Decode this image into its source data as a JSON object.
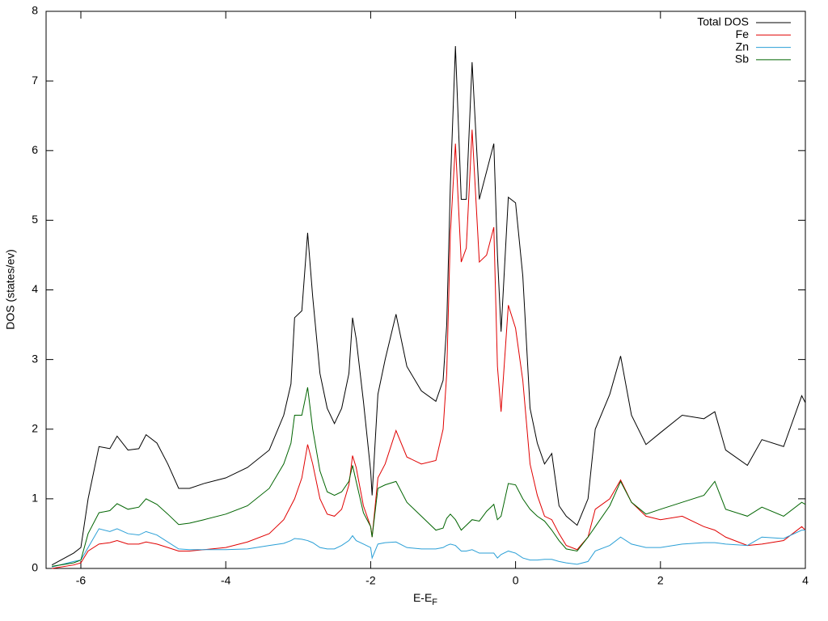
{
  "chart_data": {
    "type": "line",
    "xlabel": "E-E",
    "xlabel_subscript": "F",
    "ylabel": "DOS (states/ev)",
    "xlim": [
      -6.48,
      4
    ],
    "ylim": [
      0,
      8
    ],
    "xticks": [
      -6,
      -4,
      -2,
      0,
      2,
      4
    ],
    "yticks": [
      0,
      1,
      2,
      3,
      4,
      5,
      6,
      7,
      8
    ],
    "legend": "top-right",
    "x": [
      -6.4,
      -6.1,
      -6.0,
      -5.9,
      -5.75,
      -5.6,
      -5.5,
      -5.35,
      -5.2,
      -5.1,
      -4.95,
      -4.8,
      -4.65,
      -4.5,
      -4.3,
      -4.0,
      -3.7,
      -3.4,
      -3.2,
      -3.1,
      -3.05,
      -2.95,
      -2.87,
      -2.8,
      -2.7,
      -2.6,
      -2.5,
      -2.4,
      -2.3,
      -2.25,
      -2.2,
      -2.1,
      -2.0,
      -1.98,
      -1.9,
      -1.8,
      -1.65,
      -1.5,
      -1.3,
      -1.1,
      -1.0,
      -0.95,
      -0.9,
      -0.83,
      -0.75,
      -0.68,
      -0.6,
      -0.5,
      -0.4,
      -0.3,
      -0.25,
      -0.2,
      -0.1,
      0.0,
      0.1,
      0.2,
      0.3,
      0.4,
      0.5,
      0.6,
      0.7,
      0.85,
      1.0,
      1.1,
      1.3,
      1.45,
      1.6,
      1.8,
      2.0,
      2.3,
      2.6,
      2.75,
      2.9,
      3.2,
      3.4,
      3.7,
      3.95,
      4.0
    ],
    "series": [
      {
        "name": "Total DOS",
        "color": "#000000",
        "values": [
          0.05,
          0.22,
          0.3,
          1.0,
          1.75,
          1.72,
          1.9,
          1.7,
          1.72,
          1.92,
          1.8,
          1.5,
          1.15,
          1.15,
          1.22,
          1.3,
          1.45,
          1.7,
          2.2,
          2.65,
          3.6,
          3.7,
          4.82,
          3.9,
          2.8,
          2.3,
          2.08,
          2.3,
          2.8,
          3.6,
          3.3,
          2.4,
          1.4,
          1.05,
          2.5,
          3.0,
          3.65,
          2.9,
          2.55,
          2.4,
          2.7,
          3.5,
          5.5,
          7.5,
          5.3,
          5.3,
          7.27,
          5.3,
          5.7,
          6.1,
          4.5,
          3.4,
          5.33,
          5.25,
          4.2,
          2.3,
          1.8,
          1.5,
          1.65,
          0.9,
          0.75,
          0.62,
          1.0,
          2.0,
          2.5,
          3.05,
          2.2,
          1.78,
          1.95,
          2.2,
          2.15,
          2.25,
          1.7,
          1.48,
          1.85,
          1.75,
          2.48,
          2.38
        ]
      },
      {
        "name": "Fe",
        "color": "#e00000",
        "values": [
          0.0,
          0.05,
          0.08,
          0.25,
          0.35,
          0.37,
          0.4,
          0.35,
          0.35,
          0.38,
          0.35,
          0.3,
          0.25,
          0.25,
          0.27,
          0.3,
          0.38,
          0.5,
          0.7,
          0.9,
          1.0,
          1.3,
          1.78,
          1.5,
          1.0,
          0.78,
          0.75,
          0.85,
          1.2,
          1.62,
          1.45,
          0.9,
          0.6,
          0.45,
          1.3,
          1.5,
          1.98,
          1.6,
          1.5,
          1.55,
          2.0,
          2.8,
          4.8,
          6.1,
          4.4,
          4.6,
          6.3,
          4.4,
          4.5,
          4.9,
          2.9,
          2.25,
          3.78,
          3.45,
          2.7,
          1.5,
          1.05,
          0.75,
          0.7,
          0.5,
          0.33,
          0.27,
          0.45,
          0.85,
          1.0,
          1.27,
          0.95,
          0.75,
          0.7,
          0.75,
          0.6,
          0.55,
          0.45,
          0.33,
          0.35,
          0.4,
          0.6,
          0.55
        ]
      },
      {
        "name": "Zn",
        "color": "#2a9fd6",
        "values": [
          0.02,
          0.1,
          0.12,
          0.3,
          0.57,
          0.53,
          0.57,
          0.5,
          0.48,
          0.53,
          0.48,
          0.38,
          0.28,
          0.27,
          0.27,
          0.27,
          0.28,
          0.33,
          0.36,
          0.4,
          0.43,
          0.42,
          0.4,
          0.37,
          0.3,
          0.28,
          0.28,
          0.33,
          0.4,
          0.47,
          0.4,
          0.35,
          0.3,
          0.15,
          0.35,
          0.37,
          0.38,
          0.3,
          0.28,
          0.28,
          0.3,
          0.33,
          0.35,
          0.33,
          0.25,
          0.25,
          0.27,
          0.22,
          0.22,
          0.22,
          0.15,
          0.2,
          0.25,
          0.22,
          0.15,
          0.12,
          0.12,
          0.13,
          0.13,
          0.1,
          0.08,
          0.06,
          0.1,
          0.25,
          0.33,
          0.45,
          0.35,
          0.3,
          0.3,
          0.35,
          0.37,
          0.37,
          0.35,
          0.33,
          0.45,
          0.43,
          0.55,
          0.55
        ]
      },
      {
        "name": "Sb",
        "color": "#006400",
        "values": [
          0.03,
          0.08,
          0.12,
          0.5,
          0.8,
          0.83,
          0.93,
          0.85,
          0.88,
          1.0,
          0.92,
          0.78,
          0.63,
          0.65,
          0.7,
          0.78,
          0.9,
          1.15,
          1.5,
          1.8,
          2.2,
          2.2,
          2.6,
          2.0,
          1.4,
          1.1,
          1.05,
          1.1,
          1.25,
          1.48,
          1.25,
          0.8,
          0.6,
          0.45,
          1.15,
          1.2,
          1.25,
          0.95,
          0.75,
          0.55,
          0.58,
          0.72,
          0.78,
          0.7,
          0.55,
          0.62,
          0.7,
          0.68,
          0.82,
          0.92,
          0.7,
          0.75,
          1.22,
          1.2,
          1.0,
          0.85,
          0.75,
          0.68,
          0.55,
          0.4,
          0.28,
          0.25,
          0.45,
          0.6,
          0.9,
          1.25,
          0.95,
          0.78,
          0.85,
          0.95,
          1.05,
          1.25,
          0.85,
          0.75,
          0.88,
          0.75,
          0.95,
          0.92
        ]
      }
    ]
  }
}
